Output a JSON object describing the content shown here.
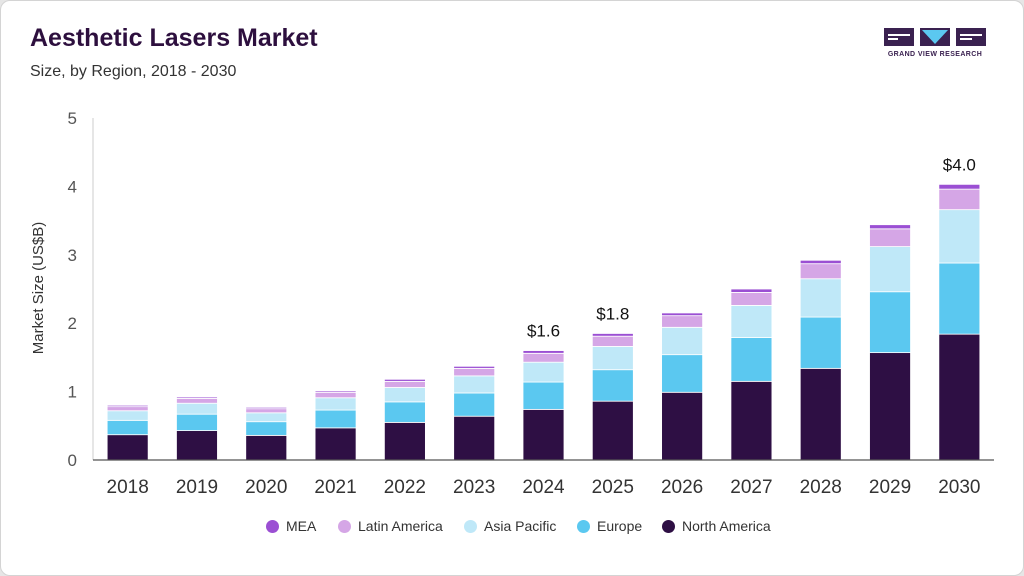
{
  "header": {
    "title": "Aesthetic Lasers Market",
    "subtitle": "Size, by Region, 2018 - 2030"
  },
  "logo": {
    "text": "GRAND VIEW RESEARCH",
    "color": "#3a2150",
    "accent": "#5bc8f0"
  },
  "chart_data": {
    "type": "bar",
    "stacked": true,
    "title": "Aesthetic Lasers Market",
    "subtitle": "Size, by Region, 2018 - 2030",
    "xlabel": "",
    "ylabel": "Market Size (US$B)",
    "ylim": [
      0,
      5
    ],
    "yticks": [
      0,
      1,
      2,
      3,
      4,
      5
    ],
    "grid": false,
    "legend_position": "bottom",
    "categories": [
      "2018",
      "2019",
      "2020",
      "2021",
      "2022",
      "2023",
      "2024",
      "2025",
      "2026",
      "2027",
      "2028",
      "2029",
      "2030"
    ],
    "series": [
      {
        "name": "North America",
        "color": "#2e0f44",
        "values": [
          0.37,
          0.43,
          0.36,
          0.47,
          0.55,
          0.64,
          0.74,
          0.86,
          0.99,
          1.15,
          1.34,
          1.57,
          1.84
        ]
      },
      {
        "name": "Europe",
        "color": "#5bc8f0",
        "values": [
          0.21,
          0.24,
          0.2,
          0.26,
          0.3,
          0.34,
          0.4,
          0.46,
          0.55,
          0.64,
          0.75,
          0.89,
          1.04
        ]
      },
      {
        "name": "Asia Pacific",
        "color": "#bfe8f8",
        "values": [
          0.14,
          0.16,
          0.13,
          0.18,
          0.21,
          0.25,
          0.29,
          0.34,
          0.4,
          0.47,
          0.56,
          0.66,
          0.78
        ]
      },
      {
        "name": "Latin America",
        "color": "#d5a6e6",
        "values": [
          0.06,
          0.07,
          0.06,
          0.08,
          0.09,
          0.11,
          0.13,
          0.15,
          0.17,
          0.19,
          0.22,
          0.26,
          0.3
        ]
      },
      {
        "name": "MEA",
        "color": "#9b4fd3",
        "values": [
          0.02,
          0.02,
          0.02,
          0.02,
          0.03,
          0.03,
          0.04,
          0.04,
          0.04,
          0.05,
          0.05,
          0.06,
          0.07
        ]
      }
    ],
    "annotations": [
      {
        "category": "2024",
        "text": "$1.6"
      },
      {
        "category": "2025",
        "text": "$1.8"
      },
      {
        "category": "2030",
        "text": "$4.0"
      }
    ],
    "legend_order": [
      "MEA",
      "Latin America",
      "Asia Pacific",
      "Europe",
      "North America"
    ]
  }
}
